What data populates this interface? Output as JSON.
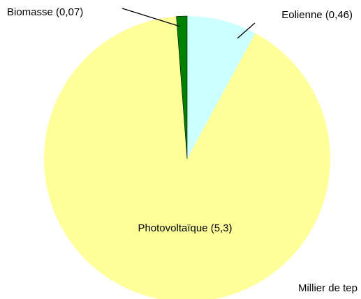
{
  "chart_data": {
    "type": "pie",
    "categories": [
      "Eolienne",
      "Photovoltaïque",
      "Biomasse"
    ],
    "values": [
      0.46,
      5.3,
      0.07
    ],
    "value_labels": [
      "(0,46)",
      "(5,3)",
      "(0,07)"
    ],
    "colors": [
      "#ccffff",
      "#ffff99",
      "#008000"
    ],
    "note": "Millier de tep"
  }
}
